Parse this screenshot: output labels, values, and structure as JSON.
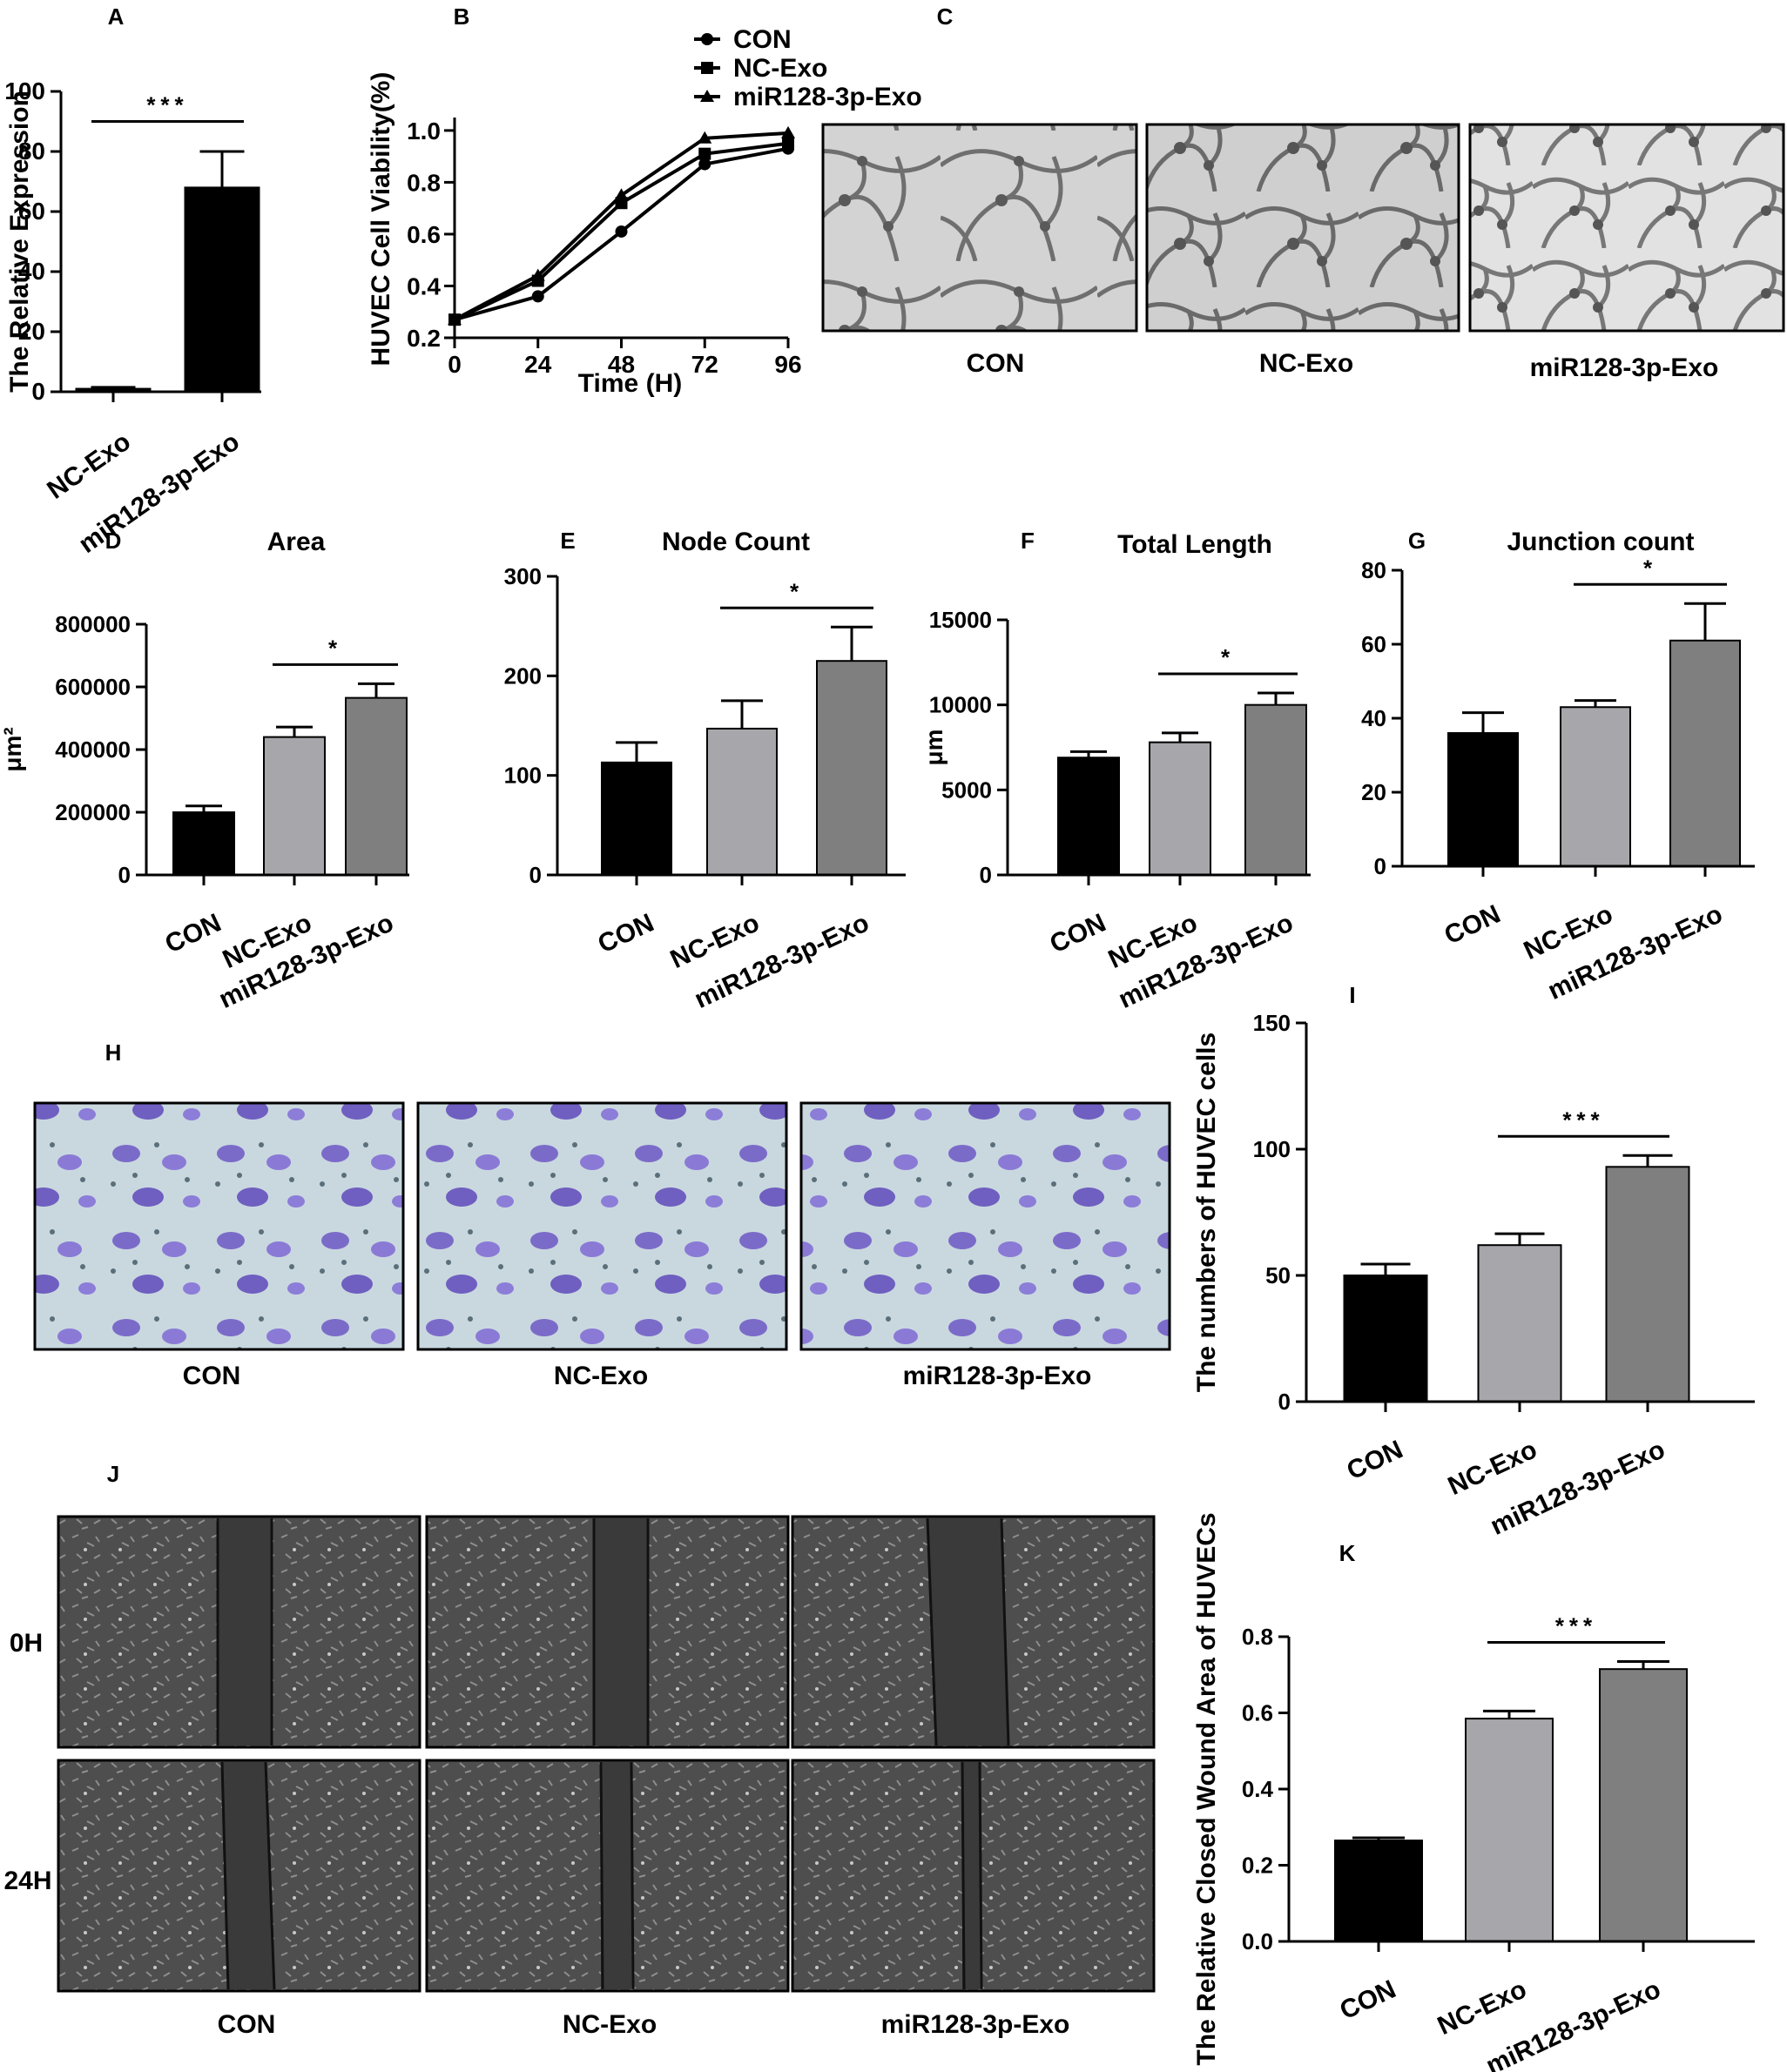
{
  "colors": {
    "black": "#000000",
    "lightgray": "#a6a6ab",
    "darkgray": "#7f7f7f",
    "line": "#000000"
  },
  "panels": {
    "A": {
      "letter": "A"
    },
    "B": {
      "letter": "B"
    },
    "C": {
      "letter": "C"
    },
    "D": {
      "letter": "D"
    },
    "E": {
      "letter": "E"
    },
    "F": {
      "letter": "F"
    },
    "G": {
      "letter": "G"
    },
    "H": {
      "letter": "H"
    },
    "I": {
      "letter": "I"
    },
    "J": {
      "letter": "J"
    },
    "K": {
      "letter": "K"
    }
  },
  "images": {
    "C": {
      "labels": [
        "CON",
        "NC-Exo",
        "miR128-3p-Exo"
      ]
    },
    "H": {
      "labels": [
        "CON",
        "NC-Exo",
        "miR128-3p-Exo"
      ]
    },
    "J": {
      "labels": [
        "CON",
        "NC-Exo",
        "miR128-3p-Exo"
      ],
      "rows": [
        "0H",
        "24H"
      ]
    }
  },
  "chart_data": [
    {
      "panel": "A",
      "type": "bar",
      "title": "",
      "ylabel": "The Relative Expression",
      "categories": [
        "NC-Exo",
        "miR128-3p-Exo"
      ],
      "values": [
        1,
        68
      ],
      "errors": [
        0.5,
        12
      ],
      "ylim": [
        0,
        100
      ],
      "yticks": [
        0,
        20,
        40,
        60,
        80,
        100
      ],
      "yticklabels": [
        "0",
        "20",
        "40",
        "60",
        "80",
        "100"
      ],
      "significance": {
        "from": 0,
        "to": 1,
        "label": "***"
      }
    },
    {
      "panel": "B",
      "type": "line",
      "title": "",
      "xlabel": "Time (H)",
      "ylabel": "HUVEC Cell Viability(%)",
      "x": [
        0,
        24,
        48,
        72,
        96
      ],
      "xlim": [
        0,
        96
      ],
      "xticks": [
        0,
        24,
        48,
        72,
        96
      ],
      "xticklabels": [
        "0",
        "24",
        "48",
        "72",
        "96"
      ],
      "ylim": [
        0.2,
        1.05
      ],
      "yticks": [
        0.2,
        0.4,
        0.6,
        0.8,
        1.0
      ],
      "yticklabels": [
        "0.2",
        "0.4",
        "0.6",
        "0.8",
        "1.0"
      ],
      "legend_position": "top-right",
      "series": [
        {
          "name": "CON",
          "marker": "circle",
          "values": [
            0.27,
            0.36,
            0.61,
            0.87,
            0.93
          ]
        },
        {
          "name": "NC-Exo",
          "marker": "square",
          "values": [
            0.27,
            0.42,
            0.72,
            0.91,
            0.95
          ]
        },
        {
          "name": "miR128-3p-Exo",
          "marker": "triangle",
          "values": [
            0.27,
            0.44,
            0.75,
            0.97,
            0.99
          ]
        }
      ]
    },
    {
      "panel": "D",
      "type": "bar",
      "title": "Area",
      "ylabel": "μm²",
      "categories": [
        "CON",
        "NC-Exo",
        "miR128-3p-Exo"
      ],
      "values": [
        200000,
        440000,
        565000
      ],
      "errors": [
        20000,
        32000,
        45000
      ],
      "ylim": [
        0,
        800000
      ],
      "yticks": [
        0,
        200000,
        400000,
        600000,
        800000
      ],
      "yticklabels": [
        "0",
        "200000",
        "400000",
        "600000",
        "800000"
      ],
      "significance": {
        "from": 1,
        "to": 2,
        "label": "*"
      }
    },
    {
      "panel": "E",
      "type": "bar",
      "title": "Node Count",
      "ylabel": "",
      "categories": [
        "CON",
        "NC-Exo",
        "miR128-3p-Exo"
      ],
      "values": [
        113,
        147,
        215
      ],
      "errors": [
        20,
        28,
        34
      ],
      "ylim": [
        0,
        300
      ],
      "yticks": [
        0,
        100,
        200,
        300
      ],
      "yticklabels": [
        "0",
        "100",
        "200",
        "300"
      ],
      "significance": {
        "from": 1,
        "to": 2,
        "label": "*"
      }
    },
    {
      "panel": "F",
      "type": "bar",
      "title": "Total Length",
      "ylabel": "μm",
      "categories": [
        "CON",
        "NC-Exo",
        "miR128-3p-Exo"
      ],
      "values": [
        6900,
        7800,
        10000
      ],
      "errors": [
        350,
        550,
        700
      ],
      "ylim": [
        0,
        15000
      ],
      "yticks": [
        0,
        5000,
        10000,
        15000
      ],
      "yticklabels": [
        "0",
        "5000",
        "10000",
        "15000"
      ],
      "significance": {
        "from": 1,
        "to": 2,
        "label": "*"
      }
    },
    {
      "panel": "G",
      "type": "bar",
      "title": "Junction count",
      "ylabel": "",
      "categories": [
        "CON",
        "NC-Exo",
        "miR128-3p-Exo"
      ],
      "values": [
        36,
        43,
        61
      ],
      "errors": [
        5.5,
        1.8,
        10
      ],
      "ylim": [
        0,
        80
      ],
      "yticks": [
        0,
        20,
        40,
        60,
        80
      ],
      "yticklabels": [
        "0",
        "20",
        "40",
        "60",
        "80"
      ],
      "significance": {
        "from": 1,
        "to": 2,
        "label": "*"
      }
    },
    {
      "panel": "I",
      "type": "bar",
      "title": "",
      "ylabel": "The numbers of HUVEC cells",
      "categories": [
        "CON",
        "NC-Exo",
        "miR128-3p-Exo"
      ],
      "values": [
        50,
        62,
        93
      ],
      "errors": [
        4.5,
        4.5,
        4.5
      ],
      "ylim": [
        0,
        150
      ],
      "yticks": [
        0,
        50,
        100,
        150
      ],
      "yticklabels": [
        "0",
        "50",
        "100",
        "150"
      ],
      "significance": {
        "from": 1,
        "to": 2,
        "label": "***"
      }
    },
    {
      "panel": "K",
      "type": "bar",
      "title": "",
      "ylabel": "The Relative Closed Wound Area of HUVECs",
      "categories": [
        "CON",
        "NC-Exo",
        "miR128-3p-Exo"
      ],
      "values": [
        0.265,
        0.585,
        0.715
      ],
      "errors": [
        0.007,
        0.02,
        0.02
      ],
      "ylim": [
        0,
        0.8
      ],
      "yticks": [
        0,
        0.2,
        0.4,
        0.6,
        0.8
      ],
      "yticklabels": [
        "0.0",
        "0.2",
        "0.4",
        "0.6",
        "0.8"
      ],
      "significance": {
        "from": 1,
        "to": 2,
        "label": "***"
      }
    }
  ]
}
